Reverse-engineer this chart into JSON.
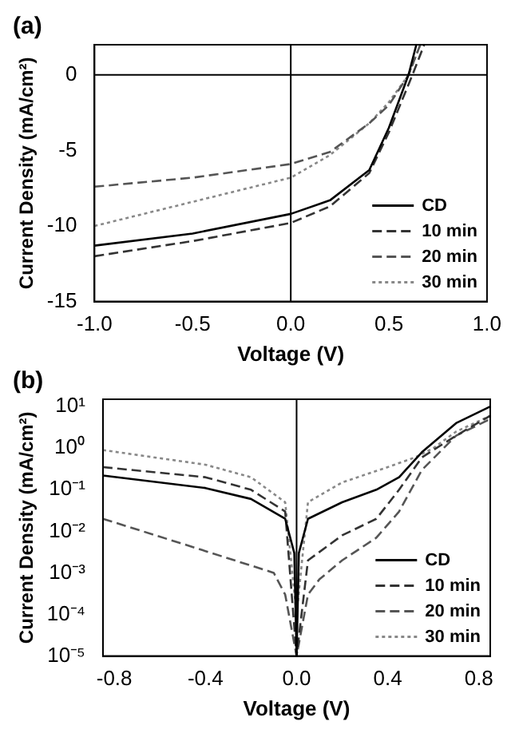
{
  "chart_data": [
    {
      "type": "line",
      "title": "(a)",
      "xlabel": "Voltage (V)",
      "ylabel": "Current Density (mA/cm²)",
      "xlim": [
        -1,
        1
      ],
      "ylim": [
        -15,
        2
      ],
      "xticks": [
        {
          "value": -1,
          "label": "-1.0"
        },
        {
          "value": -0.5,
          "label": "-0.5"
        },
        {
          "value": 0,
          "label": "0.0"
        },
        {
          "value": 0.5,
          "label": "0.5"
        },
        {
          "value": 1,
          "label": "1.0"
        }
      ],
      "yticks": [
        -15,
        -10,
        -5,
        0
      ],
      "grid": false,
      "legend": "bottom right",
      "marker": "none",
      "ref_lines": [
        {
          "axis": "x",
          "value": 0,
          "color": "#000000"
        },
        {
          "axis": "y",
          "value": 0,
          "color": "#000000"
        }
      ],
      "series": [
        {
          "name": "CD",
          "color": "#000000",
          "line_style": "solid",
          "x": [
            -1,
            -0.5,
            0,
            0.2,
            0.4,
            0.5,
            0.6,
            0.64
          ],
          "values": [
            -11.3,
            -10.5,
            -9.2,
            -8.3,
            -6.3,
            -3.5,
            0,
            2
          ]
        },
        {
          "name": "10 min",
          "color": "#333333",
          "line_style": "dashed",
          "x": [
            -1,
            -0.5,
            0,
            0.2,
            0.4,
            0.5,
            0.62,
            0.68
          ],
          "values": [
            -12,
            -11,
            -9.8,
            -8.7,
            -6.5,
            -3.8,
            0,
            2
          ]
        },
        {
          "name": "20 min",
          "color": "#555555",
          "line_style": "dashed",
          "x": [
            -1,
            -0.5,
            0,
            0.2,
            0.4,
            0.5,
            0.6,
            0.66
          ],
          "values": [
            -7.4,
            -6.8,
            -5.9,
            -5.1,
            -3.2,
            -2,
            0,
            2
          ]
        },
        {
          "name": "30 min",
          "color": "#888888",
          "line_style": "dotted",
          "x": [
            -1,
            -0.5,
            0,
            0.2,
            0.4,
            0.5,
            0.6,
            0.66
          ],
          "values": [
            -10,
            -8.4,
            -6.8,
            -5.3,
            -3.2,
            -1.8,
            0,
            2
          ]
        }
      ]
    },
    {
      "type": "line",
      "title": "(b)",
      "xlabel": "Voltage (V)",
      "ylabel": "Current Density (mA/cm²)",
      "log": "y",
      "xlim": [
        -0.85,
        0.85
      ],
      "ylim": [
        1e-05,
        15
      ],
      "xticks": [
        {
          "value": -0.8,
          "label": "-0.8"
        },
        {
          "value": -0.4,
          "label": "-0.4"
        },
        {
          "value": 0,
          "label": "0.0"
        },
        {
          "value": 0.4,
          "label": "0.4"
        },
        {
          "value": 0.8,
          "label": "0.8"
        }
      ],
      "yticks": [
        {
          "value": 1e-05,
          "label": "10⁻⁵"
        },
        {
          "value": 0.0001,
          "label": "10⁻⁴"
        },
        {
          "value": 0.001,
          "label": "10⁻³"
        },
        {
          "value": 0.01,
          "label": "10⁻²"
        },
        {
          "value": 0.1,
          "label": "10⁻¹"
        },
        {
          "value": 1,
          "label": "10⁰"
        },
        {
          "value": 10,
          "label": "10¹"
        }
      ],
      "grid": false,
      "legend": "bottom right",
      "marker": "none",
      "ref_lines": [
        {
          "axis": "x",
          "value": 0,
          "color": "#000000"
        }
      ],
      "series": [
        {
          "name": "CD",
          "color": "#000000",
          "line_style": "solid",
          "x": [
            -0.85,
            -0.4,
            -0.2,
            -0.05,
            -0.01,
            0,
            0.01,
            0.05,
            0.2,
            0.35,
            0.45,
            0.55,
            0.7,
            0.85
          ],
          "values": [
            0.22,
            0.11,
            0.06,
            0.02,
            0.003,
            1e-05,
            0.003,
            0.02,
            0.05,
            0.1,
            0.2,
            0.8,
            4,
            10
          ]
        },
        {
          "name": "10 min",
          "color": "#333333",
          "line_style": "dashed",
          "x": [
            -0.85,
            -0.4,
            -0.2,
            -0.05,
            0,
            0.05,
            0.2,
            0.35,
            0.45,
            0.55,
            0.7,
            0.85
          ],
          "values": [
            0.35,
            0.2,
            0.1,
            0.03,
            1e-05,
            0.002,
            0.008,
            0.02,
            0.1,
            0.6,
            2,
            6
          ]
        },
        {
          "name": "20 min",
          "color": "#555555",
          "line_style": "dashed",
          "x": [
            -0.85,
            -0.5,
            -0.2,
            -0.1,
            -0.05,
            0,
            0.05,
            0.1,
            0.2,
            0.35,
            0.45,
            0.55,
            0.7,
            0.85
          ],
          "values": [
            0.02,
            0.005,
            0.0015,
            0.001,
            0.0003,
            1e-05,
            0.0003,
            0.0007,
            0.002,
            0.007,
            0.03,
            0.3,
            2,
            5
          ]
        },
        {
          "name": "30 min",
          "color": "#888888",
          "line_style": "dotted",
          "x": [
            -0.85,
            -0.4,
            -0.2,
            -0.05,
            0,
            0.05,
            0.2,
            0.4,
            0.52,
            0.6,
            0.7,
            0.85
          ],
          "values": [
            0.9,
            0.4,
            0.2,
            0.05,
            0.0001,
            0.05,
            0.15,
            0.35,
            0.6,
            1,
            2.5,
            6
          ]
        }
      ]
    }
  ]
}
